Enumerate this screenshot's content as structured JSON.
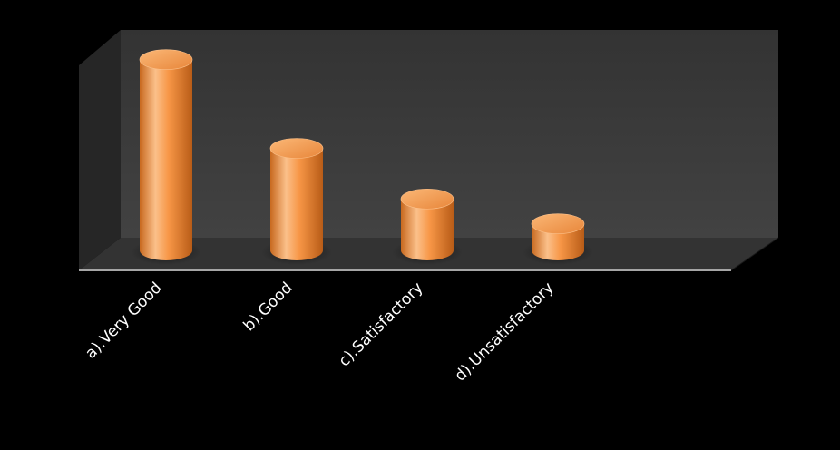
{
  "chart_data": {
    "type": "bar",
    "style": "3d-cylinder",
    "categories": [
      "a).Very Good",
      "b).Good",
      "c).Satisfactory",
      "d).Unsatisfactory"
    ],
    "values": [
      215,
      115,
      58,
      30
    ],
    "ylim": [
      0,
      230
    ],
    "grid": false,
    "legend": "none"
  },
  "colors": {
    "background": "#000000",
    "back_wall": "#3b3b3b",
    "side_wall": "#262626",
    "floor": "#333333",
    "floor_edge": "#a6a6a6",
    "bar_main": "#f79646",
    "bar_light": "#fbc08a",
    "bar_dark": "#c8691f",
    "bar_top": "#f9a560"
  }
}
